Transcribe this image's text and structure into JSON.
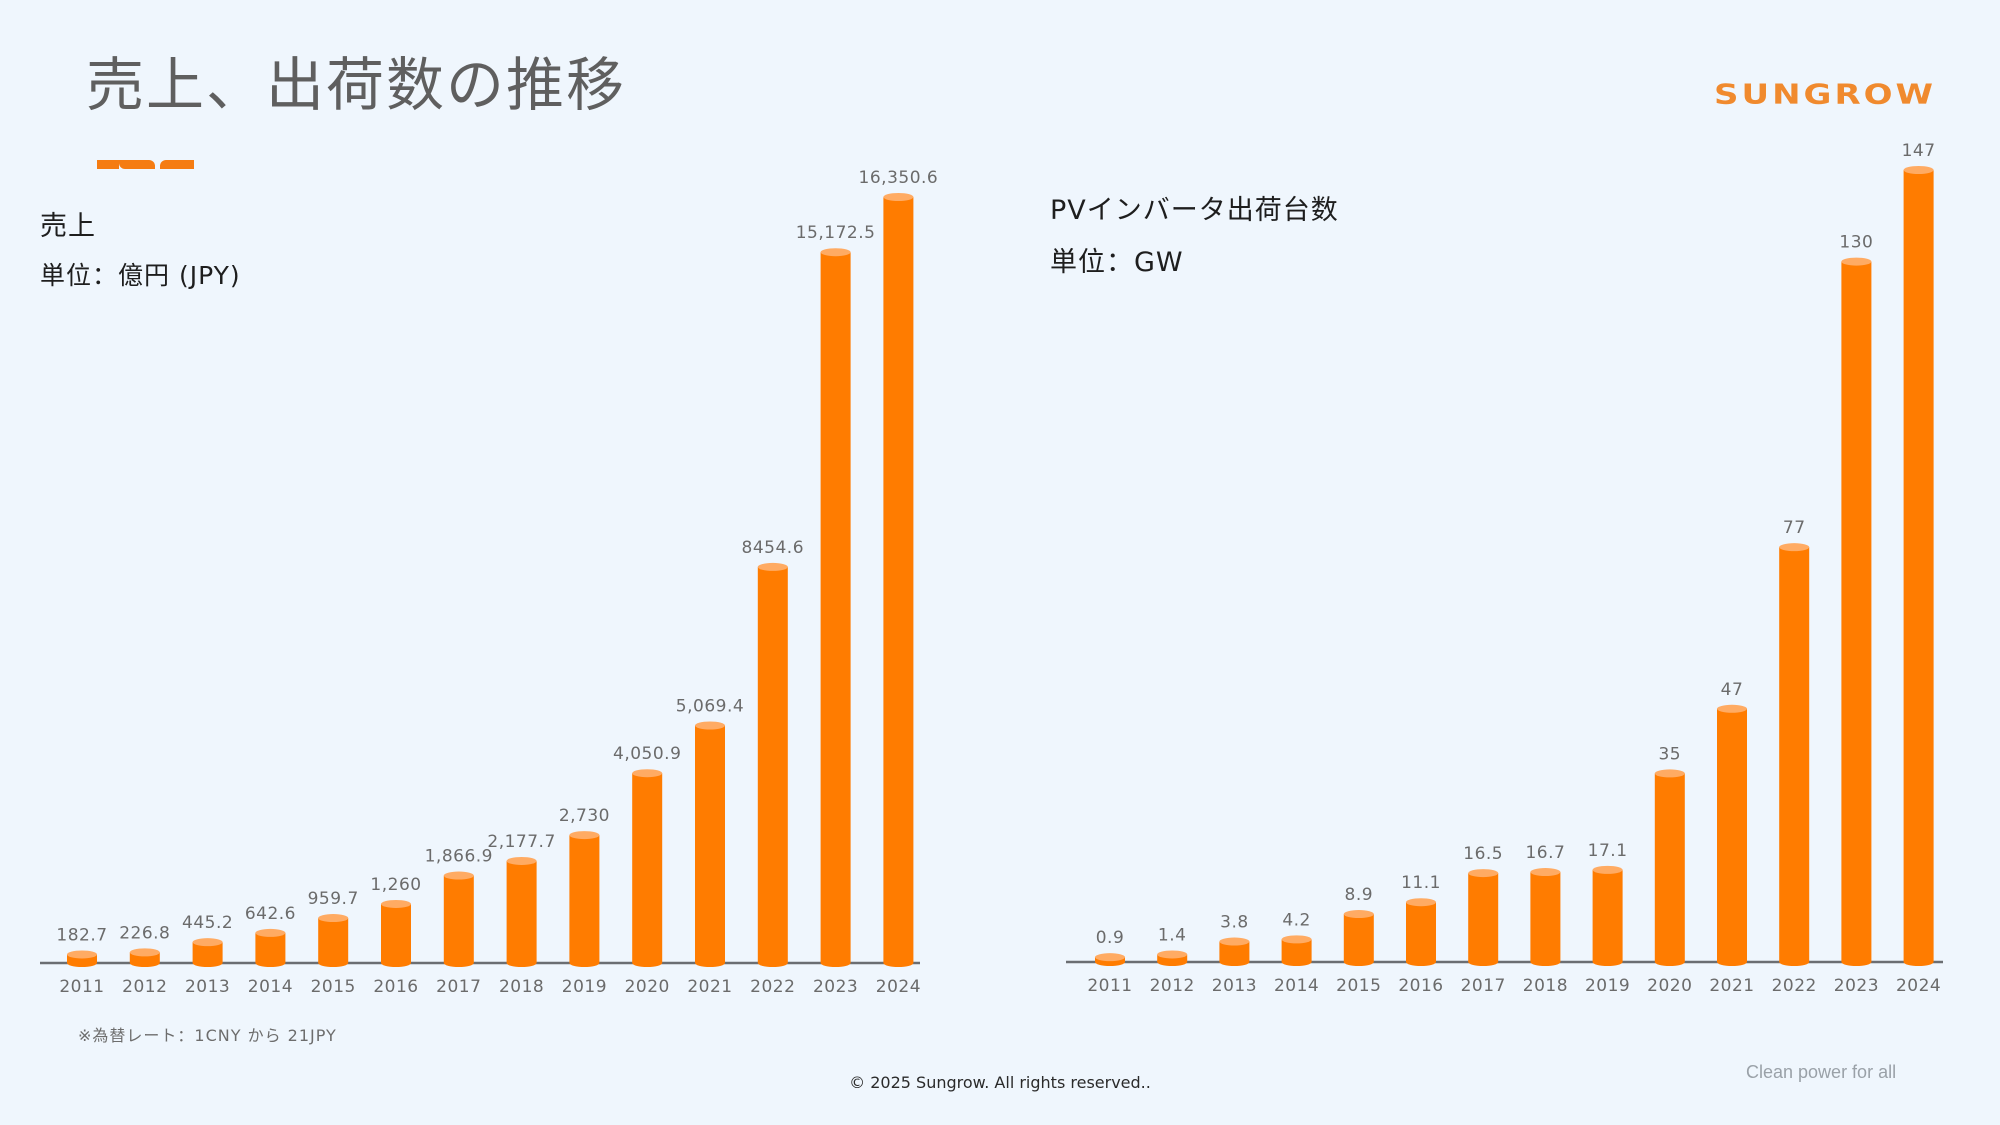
{
  "page": {
    "title": "売上、出荷数の推移",
    "logo": "SUNGROW",
    "note": "※為替レート：1CNY から 21JPY",
    "copyright": "© 2025 Sungrow. All rights reserved..",
    "tagline": "Clean power for all",
    "accent_color": "#f57c12",
    "bar_color": "#ff7c00",
    "bar_cap_color": "#ffab63"
  },
  "left_panel": {
    "heading": "売上",
    "unit": "単位：億円 (JPY)"
  },
  "right_panel": {
    "heading": "PVインバータ出荷台数",
    "unit": "単位：GW"
  },
  "chart_data": [
    {
      "type": "bar",
      "title": "売上",
      "ylabel": "単位：億円 (JPY)",
      "xlabel": "",
      "grid": false,
      "categories": [
        "2011",
        "2012",
        "2013",
        "2014",
        "2015",
        "2016",
        "2017",
        "2018",
        "2019",
        "2020",
        "2021",
        "2022",
        "2023",
        "2024"
      ],
      "values": [
        182.7,
        226.8,
        445.2,
        642.6,
        959.7,
        1260,
        1866.9,
        2177.7,
        2730,
        4050.9,
        5069.4,
        8454.6,
        15172.5,
        16350.6
      ],
      "data_labels": [
        "182.7",
        "226.8",
        "445.2",
        "642.6",
        "959.7",
        "1,260",
        "1,866.9",
        "2,177.7",
        "2,730",
        "4,050.9",
        "5,069.4",
        "8454.6",
        "15,172.5",
        "16,350.6"
      ],
      "ylim": [
        0,
        16350.6
      ]
    },
    {
      "type": "bar",
      "title": "PVインバータ出荷台数",
      "ylabel": "単位：GW",
      "xlabel": "",
      "grid": false,
      "categories": [
        "2011",
        "2012",
        "2013",
        "2014",
        "2015",
        "2016",
        "2017",
        "2018",
        "2019",
        "2020",
        "2021",
        "2022",
        "2023",
        "2024"
      ],
      "values": [
        0.9,
        1.4,
        3.8,
        4.2,
        8.9,
        11.1,
        16.5,
        16.7,
        17.1,
        35,
        47,
        77,
        130,
        147
      ],
      "data_labels": [
        "0.9",
        "1.4",
        "3.8",
        "4.2",
        "8.9",
        "11.1",
        "16.5",
        "16.7",
        "17.1",
        "35",
        "47",
        "77",
        "130",
        "147"
      ],
      "ylim": [
        0,
        147
      ]
    }
  ]
}
